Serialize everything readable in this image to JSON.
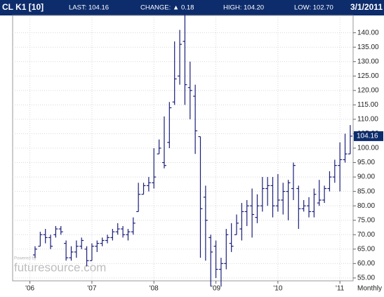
{
  "header": {
    "symbol": "CL K1 [10]",
    "last": "LAST: 104.16",
    "change": "CHANGE: ▲ 0.18",
    "high": "HIGH: 104.20",
    "low": "LOW: 102.70",
    "date": "3/1/2011"
  },
  "chart_data": {
    "type": "ohlc",
    "color": "#1a1f7a",
    "grid": true,
    "categories": [
      "'06",
      null,
      null,
      null,
      null,
      null,
      null,
      null,
      null,
      null,
      null,
      null,
      "'07",
      null,
      null,
      null,
      null,
      null,
      null,
      null,
      null,
      null,
      null,
      null,
      "'08",
      null,
      null,
      null,
      null,
      null,
      null,
      null,
      null,
      null,
      null,
      null,
      "'09",
      null,
      null,
      null,
      null,
      null,
      null,
      null,
      null,
      null,
      null,
      null,
      "'10",
      null,
      null,
      null,
      null,
      null,
      null,
      null,
      null,
      null,
      null,
      null,
      "'11",
      null,
      null
    ],
    "open": [
      null,
      63,
      66,
      70,
      69,
      70,
      72,
      67,
      62,
      64,
      66,
      65,
      61,
      66,
      67,
      68,
      69,
      71,
      72,
      70,
      71,
      78,
      84,
      87,
      88,
      98,
      95,
      102,
      116,
      125,
      137,
      121,
      118,
      104,
      83,
      69,
      66,
      58,
      60,
      67,
      70,
      72,
      78,
      80,
      76,
      80,
      86,
      87,
      80,
      82,
      85,
      86,
      86,
      79,
      80,
      78,
      81,
      82,
      86,
      90,
      94,
      96,
      98
    ],
    "high": [
      null,
      66,
      71,
      72,
      70,
      73,
      73,
      68,
      66,
      68,
      69,
      66,
      67,
      68,
      69,
      70,
      72,
      74,
      73,
      72,
      76,
      88,
      88,
      90,
      100,
      103,
      111,
      116,
      137,
      141,
      147,
      130,
      122,
      104,
      87,
      70,
      68,
      62,
      72,
      74,
      77,
      81,
      82,
      86,
      84,
      90,
      90,
      90,
      91,
      88,
      89,
      95,
      87,
      82,
      83,
      86,
      89,
      87,
      92,
      96,
      102,
      105,
      108
    ],
    "low": [
      null,
      62,
      66,
      67,
      65,
      69,
      70,
      61,
      61,
      62,
      65,
      59,
      61,
      64,
      66,
      67,
      68,
      70,
      69,
      68,
      70,
      78,
      84,
      85,
      86,
      98,
      93,
      100,
      115,
      122,
      115,
      110,
      98,
      62,
      61,
      52,
      55,
      52,
      58,
      64,
      70,
      68,
      73,
      69,
      74,
      78,
      80,
      76,
      78,
      77,
      75,
      82,
      72,
      78,
      76,
      76,
      80,
      81,
      85,
      88,
      85,
      95,
      98
    ],
    "close": [
      null,
      65,
      70,
      69,
      66,
      72,
      71,
      62,
      64,
      66,
      68,
      61,
      66,
      67,
      68,
      69,
      71,
      72,
      70,
      71,
      74,
      84,
      87,
      88,
      90,
      100,
      94,
      114,
      124,
      136,
      122,
      120,
      106,
      79,
      75,
      64,
      58,
      60,
      70,
      66,
      74,
      78,
      80,
      77,
      80,
      86,
      87,
      80,
      82,
      85,
      88,
      94,
      79,
      80,
      78,
      84,
      82,
      86,
      90,
      94,
      96,
      98,
      104.16
    ],
    "ylim": [
      54,
      146
    ],
    "yticks": [
      {
        "value": 55,
        "label": "55.00"
      },
      {
        "value": 60,
        "label": "60.00"
      },
      {
        "value": 65,
        "label": "65.00"
      },
      {
        "value": 70,
        "label": "70.00"
      },
      {
        "value": 75,
        "label": "75.00"
      },
      {
        "value": 80,
        "label": "80.00"
      },
      {
        "value": 85,
        "label": "85.00"
      },
      {
        "value": 90,
        "label": "90.00"
      },
      {
        "value": 95,
        "label": "95.00"
      },
      {
        "value": 100,
        "label": "100.00"
      },
      {
        "value": 105,
        "label": "105.00"
      },
      {
        "value": 110,
        "label": "110.00"
      },
      {
        "value": 115,
        "label": "115.00"
      },
      {
        "value": 120,
        "label": "120.00"
      },
      {
        "value": 125,
        "label": "125.00"
      },
      {
        "value": 130,
        "label": "130.00"
      },
      {
        "value": 135,
        "label": "135.00"
      },
      {
        "value": 140,
        "label": "140.00"
      }
    ],
    "last_price": 104.16,
    "period": "Monthly",
    "watermark": "futuresource.com",
    "watermark_note": "Powered by"
  }
}
